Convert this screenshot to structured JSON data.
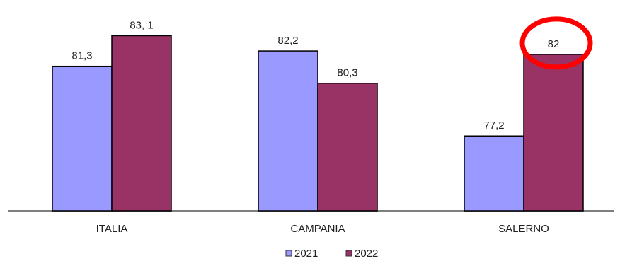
{
  "chart_data": {
    "type": "bar",
    "categories": [
      "ITALIA",
      "CAMPANIA",
      "SALERNO"
    ],
    "series": [
      {
        "name": "2021",
        "values": [
          81.3,
          82.2,
          77.2
        ],
        "labels": [
          "81,3",
          "82,2",
          "77,2"
        ],
        "color": "#9999ff"
      },
      {
        "name": "2022",
        "values": [
          83.1,
          80.3,
          82.0
        ],
        "labels": [
          "83, 1",
          "80,3",
          "82"
        ],
        "color": "#993366"
      }
    ],
    "ylim": [
      72.8,
      84.2
    ],
    "grid": false,
    "legend_position": "bottom-center",
    "annotation": {
      "type": "circle",
      "category": "SALERNO",
      "series": "2022",
      "color": "#ff0000"
    }
  }
}
